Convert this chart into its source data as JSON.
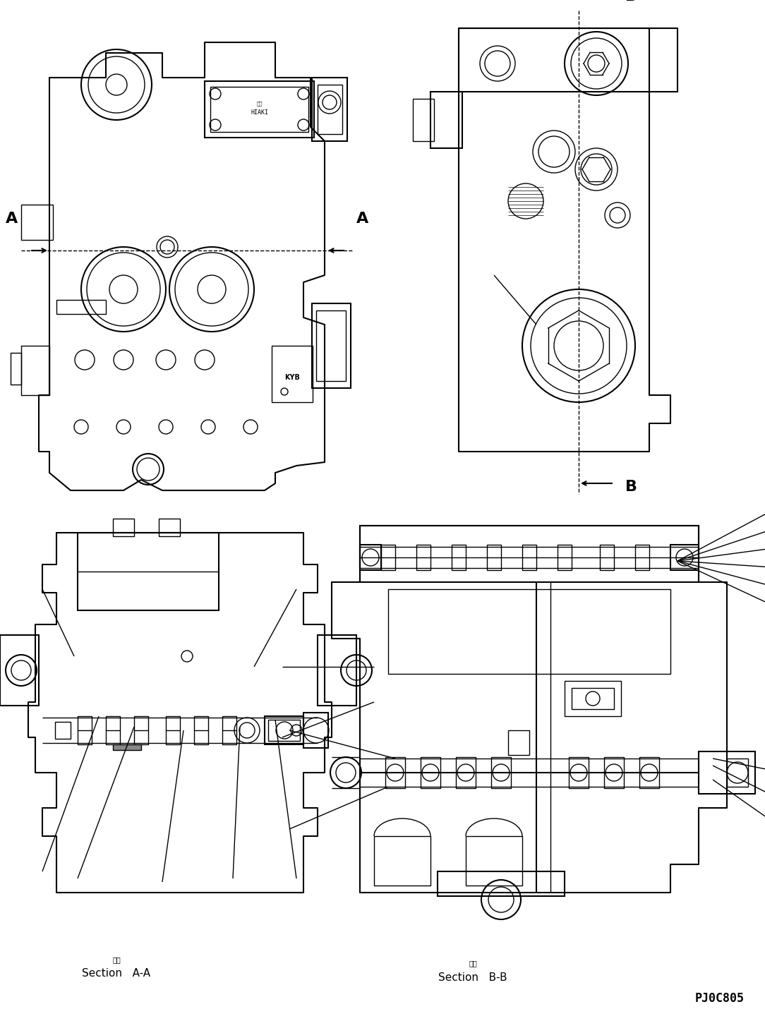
{
  "fig_width": 10.84,
  "fig_height": 14.47,
  "dpi": 100,
  "bg_color": "#ffffff",
  "line_color": "#000000",
  "section_AA_label": "Section   A-A",
  "section_BB_label": "Section   B-B",
  "part_number": "PJ0C805",
  "kanji_section": "断面"
}
